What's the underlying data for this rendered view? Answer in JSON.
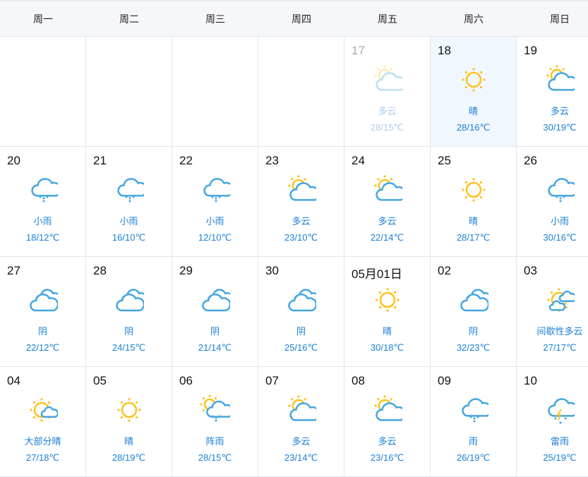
{
  "weekdays": [
    "周一",
    "周二",
    "周三",
    "周四",
    "周五",
    "周六",
    "周日"
  ],
  "colors": {
    "sun": "#fdc21a",
    "cloud": "#45a6e0",
    "text": "#1a7fd6",
    "today_bg": "#f0f7ff"
  },
  "weeks": [
    [
      null,
      null,
      null,
      null,
      {
        "day": "17",
        "cond": "多云",
        "temp": "28/15℃",
        "icon": "partly-cloudy-icon",
        "past": true
      },
      {
        "day": "18",
        "cond": "晴",
        "temp": "28/16℃",
        "icon": "sun-icon",
        "today": true
      },
      {
        "day": "19",
        "cond": "多云",
        "temp": "30/19℃",
        "icon": "partly-cloudy-icon"
      }
    ],
    [
      {
        "day": "20",
        "cond": "小雨",
        "temp": "18/12℃",
        "icon": "rain-icon"
      },
      {
        "day": "21",
        "cond": "小雨",
        "temp": "16/10℃",
        "icon": "rain-icon"
      },
      {
        "day": "22",
        "cond": "小雨",
        "temp": "12/10℃",
        "icon": "rain-icon"
      },
      {
        "day": "23",
        "cond": "多云",
        "temp": "23/10℃",
        "icon": "partly-cloudy-icon"
      },
      {
        "day": "24",
        "cond": "多云",
        "temp": "22/14℃",
        "icon": "partly-cloudy-icon"
      },
      {
        "day": "25",
        "cond": "晴",
        "temp": "28/17℃",
        "icon": "sun-icon"
      },
      {
        "day": "26",
        "cond": "小雨",
        "temp": "30/16℃",
        "icon": "rain-icon"
      }
    ],
    [
      {
        "day": "27",
        "cond": "阴",
        "temp": "22/12℃",
        "icon": "overcast-icon"
      },
      {
        "day": "28",
        "cond": "阴",
        "temp": "24/15℃",
        "icon": "overcast-icon"
      },
      {
        "day": "29",
        "cond": "阴",
        "temp": "21/14℃",
        "icon": "overcast-icon"
      },
      {
        "day": "30",
        "cond": "阴",
        "temp": "25/16℃",
        "icon": "overcast-icon"
      },
      {
        "day": "05月01日",
        "cond": "晴",
        "temp": "30/18℃",
        "icon": "sun-icon"
      },
      {
        "day": "02",
        "cond": "阴",
        "temp": "32/23℃",
        "icon": "overcast-icon"
      },
      {
        "day": "03",
        "cond": "间歇性多云",
        "temp": "27/17℃",
        "icon": "intermittent-cloud-icon"
      }
    ],
    [
      {
        "day": "04",
        "cond": "大部分晴",
        "temp": "27/18℃",
        "icon": "mostly-sunny-icon"
      },
      {
        "day": "05",
        "cond": "晴",
        "temp": "28/19℃",
        "icon": "sun-icon"
      },
      {
        "day": "06",
        "cond": "阵雨",
        "temp": "28/15℃",
        "icon": "shower-icon"
      },
      {
        "day": "07",
        "cond": "多云",
        "temp": "23/14℃",
        "icon": "partly-cloudy-icon"
      },
      {
        "day": "08",
        "cond": "多云",
        "temp": "23/16℃",
        "icon": "partly-cloudy-icon"
      },
      {
        "day": "09",
        "cond": "雨",
        "temp": "26/19℃",
        "icon": "rain-icon"
      },
      {
        "day": "10",
        "cond": "雷雨",
        "temp": "25/19℃",
        "icon": "thunderstorm-icon"
      }
    ]
  ]
}
